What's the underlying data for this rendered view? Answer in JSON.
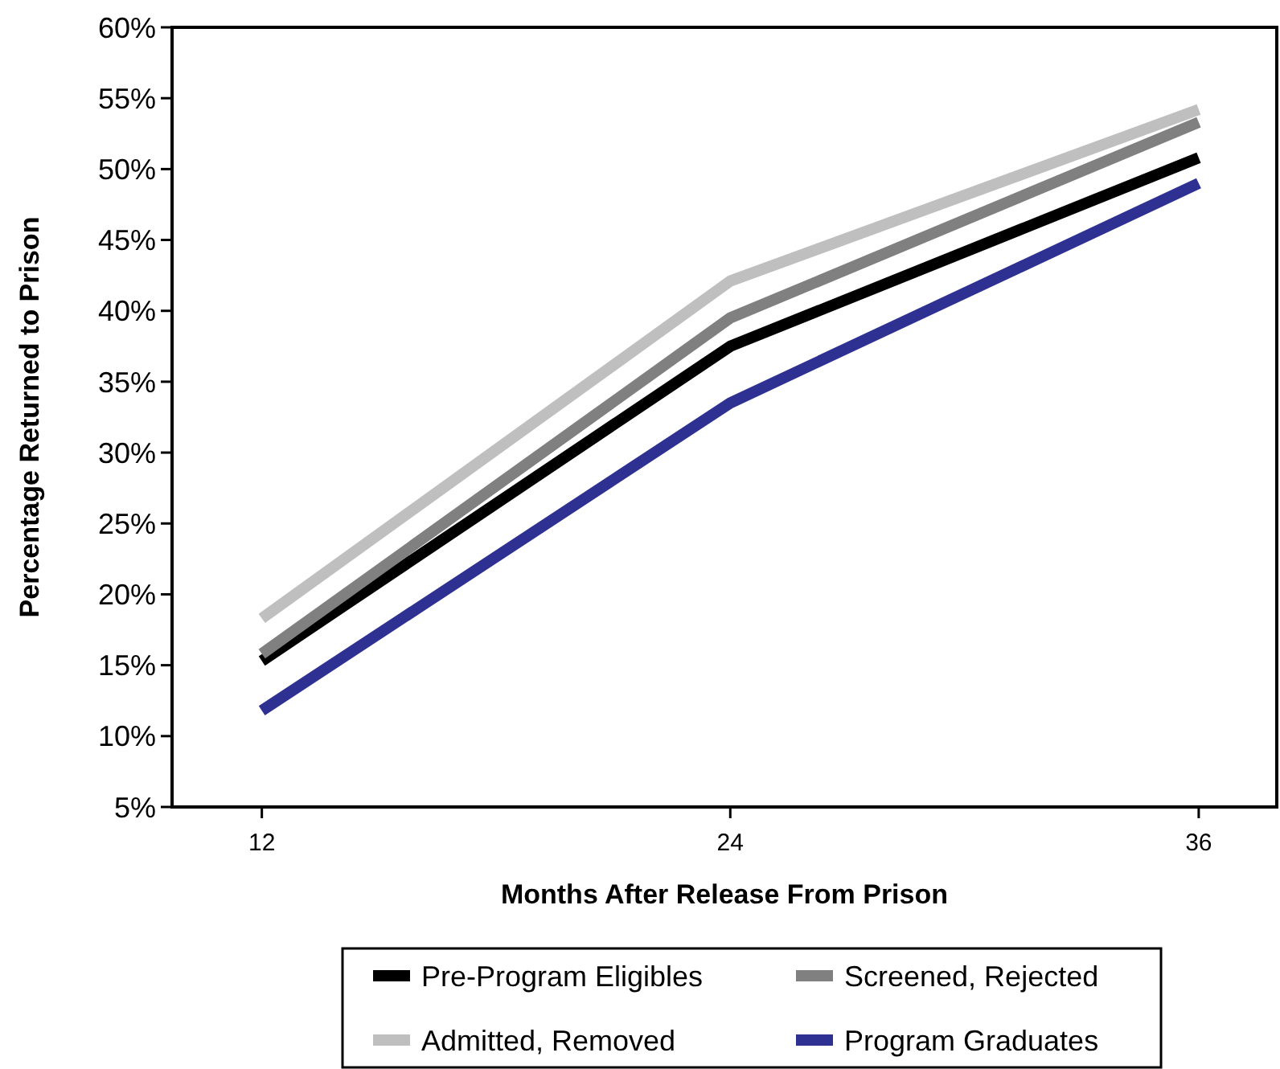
{
  "chart_data": {
    "type": "line",
    "xlabel": "Months After Release From Prison",
    "ylabel": "Percentage Returned to Prison",
    "x": [
      12,
      24,
      36
    ],
    "xlim": [
      9.7,
      38
    ],
    "xticks": [
      12,
      24,
      36
    ],
    "ylim": [
      5,
      60
    ],
    "yticks": [
      {
        "value": 5,
        "label": "5%"
      },
      {
        "value": 10,
        "label": "10%"
      },
      {
        "value": 15,
        "label": "15%"
      },
      {
        "value": 20,
        "label": "20%"
      },
      {
        "value": 25,
        "label": "25%"
      },
      {
        "value": 30,
        "label": "30%"
      },
      {
        "value": 35,
        "label": "35%"
      },
      {
        "value": 40,
        "label": "40%"
      },
      {
        "value": 45,
        "label": "45%"
      },
      {
        "value": 50,
        "label": "50%"
      },
      {
        "value": 55,
        "label": "55%"
      },
      {
        "value": 60,
        "label": "60%"
      }
    ],
    "grid": false,
    "legend": "bottom",
    "line_style": "solid",
    "series": [
      {
        "name": "Pre-Program Eligibles",
        "color": "#000000",
        "values": [
          15.3,
          37.5,
          50.8
        ]
      },
      {
        "name": "Screened, Rejected",
        "color": "#808080",
        "values": [
          15.8,
          39.5,
          53.3
        ]
      },
      {
        "name": "Admitted, Removed",
        "color": "#bfbfbf",
        "values": [
          18.3,
          42.1,
          54.2
        ]
      },
      {
        "name": "Program Graduates",
        "color": "#2e3192",
        "values": [
          11.8,
          33.5,
          49
        ]
      }
    ]
  }
}
